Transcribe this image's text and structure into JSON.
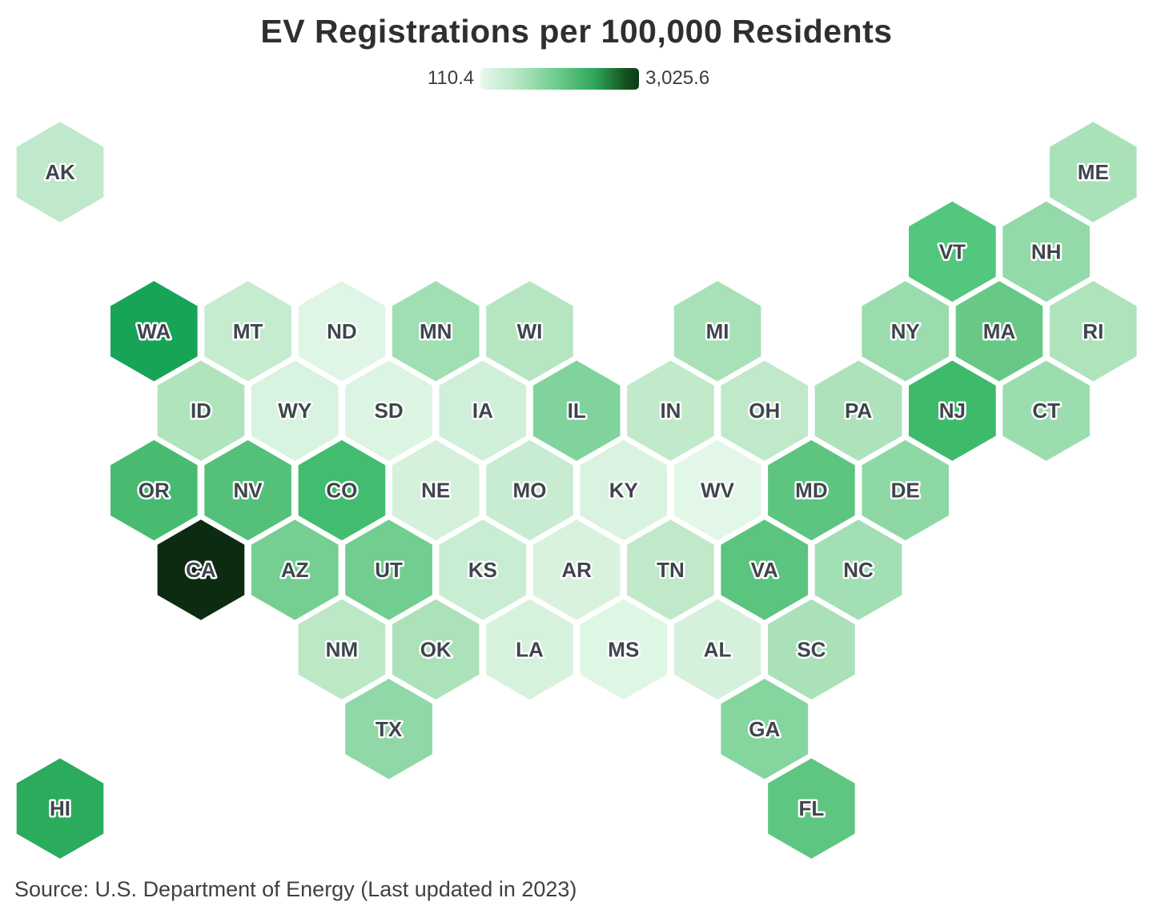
{
  "title": "EV Registrations per 100,000 Residents",
  "legend": {
    "min_label": "110.4",
    "max_label": "3,025.6"
  },
  "source": "Source: U.S. Department of Energy (Last updated in 2023)",
  "chart_data": {
    "type": "heatmap",
    "subtype": "hex-tile-cartogram",
    "title": "EV Registrations per 100,000 Residents",
    "legend_position": "top-center",
    "colorscale": {
      "min": 110.4,
      "max": 3025.6,
      "min_label": "110.4",
      "max_label": "3,025.6",
      "gradient": [
        "#e9f8ee",
        "#b9e7c5",
        "#6fcc8e",
        "#2fa758",
        "#0d3b18"
      ]
    },
    "states": [
      {
        "abbr": "AK",
        "row": 1,
        "col": 0,
        "color": "#bfe9ca"
      },
      {
        "abbr": "ME",
        "row": 1,
        "col": 11,
        "color": "#a9e2b9"
      },
      {
        "abbr": "VT",
        "row": 2,
        "col": 9,
        "color": "#53c77d"
      },
      {
        "abbr": "NH",
        "row": 2,
        "col": 10,
        "color": "#93d9a9"
      },
      {
        "abbr": "WA",
        "row": 3,
        "col": 1,
        "color": "#18a457"
      },
      {
        "abbr": "MT",
        "row": 3,
        "col": 2,
        "color": "#c6ecd0"
      },
      {
        "abbr": "ND",
        "row": 3,
        "col": 3,
        "color": "#dff5e5"
      },
      {
        "abbr": "MN",
        "row": 3,
        "col": 4,
        "color": "#9fdfb3"
      },
      {
        "abbr": "WI",
        "row": 3,
        "col": 5,
        "color": "#b5e6c1"
      },
      {
        "abbr": "MI",
        "row": 3,
        "col": 7,
        "color": "#a8e1b7"
      },
      {
        "abbr": "NY",
        "row": 3,
        "col": 9,
        "color": "#9bdcae"
      },
      {
        "abbr": "MA",
        "row": 3,
        "col": 10,
        "color": "#68c987"
      },
      {
        "abbr": "RI",
        "row": 3,
        "col": 11,
        "color": "#aee3bc"
      },
      {
        "abbr": "ID",
        "row": 4,
        "col": 1,
        "color": "#b0e4bd"
      },
      {
        "abbr": "WY",
        "row": 4,
        "col": 2,
        "color": "#d8f3df"
      },
      {
        "abbr": "SD",
        "row": 4,
        "col": 3,
        "color": "#dcf4e2"
      },
      {
        "abbr": "IA",
        "row": 4,
        "col": 4,
        "color": "#cfefd8"
      },
      {
        "abbr": "IL",
        "row": 4,
        "col": 5,
        "color": "#80d39c"
      },
      {
        "abbr": "IN",
        "row": 4,
        "col": 6,
        "color": "#c1eacb"
      },
      {
        "abbr": "OH",
        "row": 4,
        "col": 7,
        "color": "#c0e9ca"
      },
      {
        "abbr": "PA",
        "row": 4,
        "col": 8,
        "color": "#aee2bb"
      },
      {
        "abbr": "NJ",
        "row": 4,
        "col": 9,
        "color": "#3dba6a"
      },
      {
        "abbr": "CT",
        "row": 4,
        "col": 10,
        "color": "#9cddaf"
      },
      {
        "abbr": "OR",
        "row": 5,
        "col": 1,
        "color": "#48bb70"
      },
      {
        "abbr": "NV",
        "row": 5,
        "col": 2,
        "color": "#55c07a"
      },
      {
        "abbr": "CO",
        "row": 5,
        "col": 3,
        "color": "#42bd6f"
      },
      {
        "abbr": "NE",
        "row": 5,
        "col": 4,
        "color": "#d5f1dc"
      },
      {
        "abbr": "MO",
        "row": 5,
        "col": 5,
        "color": "#c7ecd1"
      },
      {
        "abbr": "KY",
        "row": 5,
        "col": 6,
        "color": "#daf3e0"
      },
      {
        "abbr": "WV",
        "row": 5,
        "col": 7,
        "color": "#e3f7e8"
      },
      {
        "abbr": "MD",
        "row": 5,
        "col": 8,
        "color": "#5dc580"
      },
      {
        "abbr": "DE",
        "row": 5,
        "col": 9,
        "color": "#8ed8a5"
      },
      {
        "abbr": "CA",
        "row": 6,
        "col": 1,
        "color": "#0d2b11"
      },
      {
        "abbr": "AZ",
        "row": 6,
        "col": 2,
        "color": "#75ce92"
      },
      {
        "abbr": "UT",
        "row": 6,
        "col": 3,
        "color": "#72cd90"
      },
      {
        "abbr": "KS",
        "row": 6,
        "col": 4,
        "color": "#c8edd2"
      },
      {
        "abbr": "AR",
        "row": 6,
        "col": 5,
        "color": "#d8f2de"
      },
      {
        "abbr": "TN",
        "row": 6,
        "col": 6,
        "color": "#c0e9ca"
      },
      {
        "abbr": "VA",
        "row": 6,
        "col": 7,
        "color": "#5bc47e"
      },
      {
        "abbr": "NC",
        "row": 6,
        "col": 8,
        "color": "#a3dfb4"
      },
      {
        "abbr": "NM",
        "row": 7,
        "col": 3,
        "color": "#bce8c6"
      },
      {
        "abbr": "OK",
        "row": 7,
        "col": 4,
        "color": "#ace2b9"
      },
      {
        "abbr": "LA",
        "row": 7,
        "col": 5,
        "color": "#d6f2dd"
      },
      {
        "abbr": "MS",
        "row": 7,
        "col": 6,
        "color": "#def7e5"
      },
      {
        "abbr": "AL",
        "row": 7,
        "col": 7,
        "color": "#d5f1dc"
      },
      {
        "abbr": "SC",
        "row": 7,
        "col": 8,
        "color": "#abe1b8"
      },
      {
        "abbr": "TX",
        "row": 8,
        "col": 3,
        "color": "#90d8a7"
      },
      {
        "abbr": "GA",
        "row": 8,
        "col": 7,
        "color": "#85d59e"
      },
      {
        "abbr": "HI",
        "row": 9,
        "col": 0,
        "color": "#2bab5c"
      },
      {
        "abbr": "FL",
        "row": 9,
        "col": 8,
        "color": "#5fc681"
      }
    ]
  }
}
